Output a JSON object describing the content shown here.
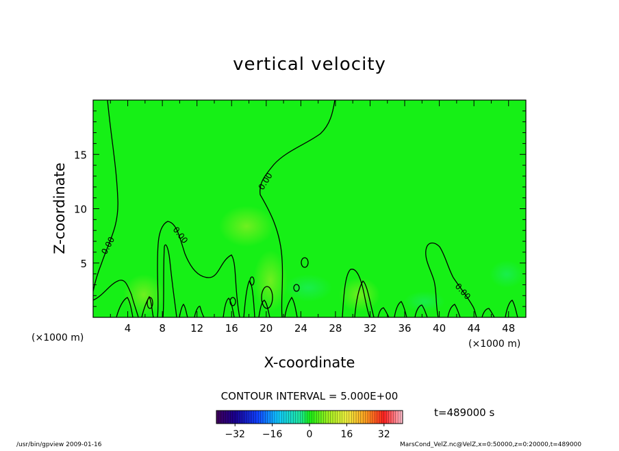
{
  "chart_data": {
    "type": "heatmap",
    "title": "vertical velocity",
    "xlabel": "X-coordinate",
    "ylabel": "Z-coordinate",
    "x_unit": "(×1000 m)",
    "y_unit": "(×1000 m)",
    "x_range": [
      0,
      50
    ],
    "y_range": [
      0,
      20
    ],
    "x_ticks": [
      "4",
      "8",
      "12",
      "16",
      "20",
      "24",
      "28",
      "32",
      "36",
      "40",
      "44",
      "48"
    ],
    "x_tick_values": [
      4,
      8,
      12,
      16,
      20,
      24,
      28,
      32,
      36,
      40,
      44,
      48
    ],
    "y_ticks": [
      "5",
      "10",
      "15"
    ],
    "y_tick_values": [
      5,
      10,
      15
    ],
    "contour_interval_text": "CONTOUR INTERVAL = 5.000E+00",
    "contour_level": "0.00",
    "colorbar": {
      "range": [
        -40,
        40
      ],
      "ticks": [
        "−32",
        "−16",
        "0",
        "16",
        "32"
      ],
      "tick_values": [
        -32,
        -16,
        0,
        16,
        32
      ]
    },
    "time_label": "t=489000 s",
    "field_color": "#16f016"
  },
  "footer": {
    "left": "/usr/bin/gpview  2009-01-16",
    "right": "MarsCond_VelZ.nc@VelZ,x=0:50000,z=0:20000,t=489000"
  }
}
